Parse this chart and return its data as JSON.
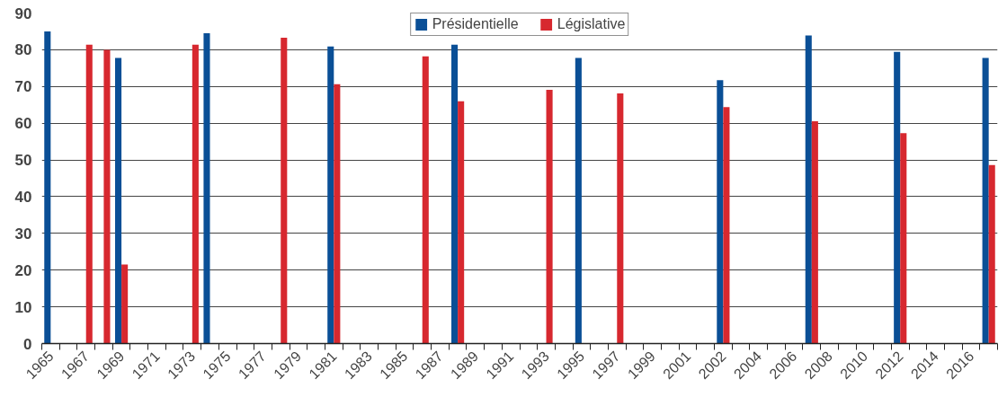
{
  "chart_data": {
    "type": "bar",
    "categories": [
      "1965",
      null,
      "1967",
      null,
      "1969",
      null,
      "1971",
      null,
      "1973",
      null,
      "1975",
      null,
      "1977",
      null,
      "1979",
      null,
      "1981",
      null,
      "1983",
      null,
      "1985",
      null,
      "1987",
      null,
      "1989",
      null,
      "1991",
      null,
      "1993",
      null,
      "1995",
      null,
      "1997",
      null,
      "1999",
      null,
      "2001",
      null,
      "2002",
      null,
      "2004",
      null,
      "2006",
      null,
      "2008",
      null,
      "2010",
      null,
      "2012",
      null,
      "2014",
      null,
      "2016",
      null
    ],
    "series": [
      {
        "name": "Présidentielle",
        "color": "#0a4f96",
        "values": [
          85.0,
          null,
          null,
          null,
          77.8,
          null,
          null,
          null,
          null,
          84.5,
          null,
          null,
          null,
          null,
          null,
          null,
          80.9,
          null,
          null,
          null,
          null,
          null,
          null,
          81.4,
          null,
          null,
          null,
          null,
          null,
          null,
          77.8,
          null,
          null,
          null,
          null,
          null,
          null,
          null,
          71.7,
          null,
          null,
          null,
          null,
          83.9,
          null,
          null,
          null,
          null,
          79.4,
          null,
          null,
          null,
          null,
          77.8
        ]
      },
      {
        "name": "Législative",
        "color": "#d7282f",
        "values": [
          null,
          null,
          81.4,
          80.0,
          21.5,
          null,
          null,
          null,
          81.4,
          null,
          null,
          null,
          null,
          83.3,
          null,
          null,
          70.6,
          null,
          null,
          null,
          null,
          78.2,
          null,
          66.0,
          null,
          null,
          null,
          null,
          69.1,
          null,
          null,
          null,
          68.1,
          null,
          null,
          null,
          null,
          null,
          64.4,
          null,
          null,
          null,
          null,
          60.5,
          null,
          null,
          null,
          null,
          57.3,
          null,
          null,
          null,
          null,
          48.6
        ]
      }
    ],
    "ylim": [
      0,
      90
    ],
    "yticks": [
      0,
      10,
      20,
      30,
      40,
      50,
      60,
      70,
      80,
      90
    ],
    "grid": "y",
    "legend": "top"
  }
}
